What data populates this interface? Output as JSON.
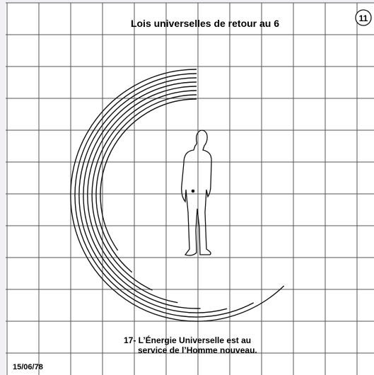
{
  "header": {
    "title": "Lois universelles de retour au 6",
    "page_number": "11"
  },
  "caption": {
    "line1": "17- L’Énergie Universelle est au",
    "line2": "service de l’Homme nouveau."
  },
  "footer": {
    "date": "15/06/78"
  }
}
